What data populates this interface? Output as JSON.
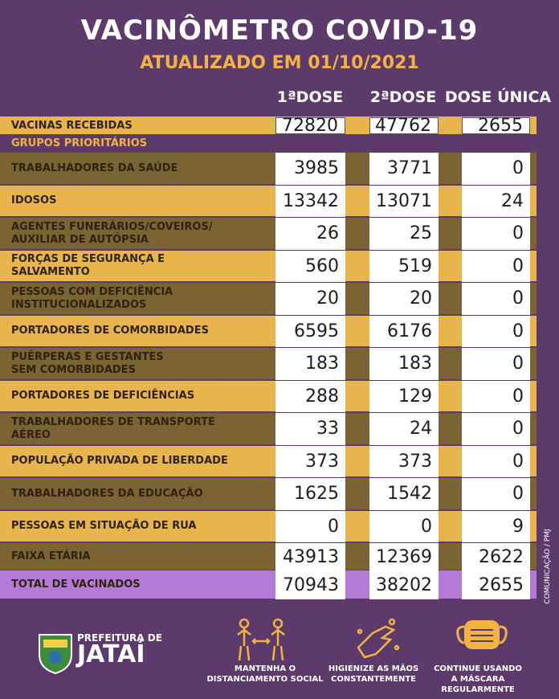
{
  "header": {
    "title": "VACINÔMETRO COVID-19",
    "subtitle": "ATUALIZADO EM 01/10/2021"
  },
  "table": {
    "columns": [
      "1ªDOSE",
      "2ªDOSE",
      "DOSE ÚNICA"
    ],
    "received": {
      "label": [
        "VACINAS RECEBIDAS"
      ],
      "values": [
        72820,
        47762,
        2655
      ]
    },
    "section": "GRUPOS PRIORITÁRIOS",
    "rows": [
      {
        "label": [
          "TRABALHADORES DA SAÚDE"
        ],
        "values": [
          3985,
          3771,
          0
        ]
      },
      {
        "label": [
          "IDOSOS"
        ],
        "values": [
          13342,
          13071,
          24
        ]
      },
      {
        "label": [
          "AGENTES FUNERÁRIOS/COVEIROS/",
          "AUXILIAR DE AUTÓPSIA"
        ],
        "values": [
          26,
          25,
          0
        ]
      },
      {
        "label": [
          "FORÇAS DE SEGURANÇA E",
          "SALVAMENTO"
        ],
        "values": [
          560,
          519,
          0
        ]
      },
      {
        "label": [
          "PESSOAS COM DEFICIÊNCIA",
          "INSTITUCIONALIZADOS"
        ],
        "values": [
          20,
          20,
          0
        ]
      },
      {
        "label": [
          "PORTADORES DE COMORBIDADES"
        ],
        "values": [
          6595,
          6176,
          0
        ]
      },
      {
        "label": [
          "PUÉRPERAS E GESTANTES",
          "SEM COMORBIDADES"
        ],
        "values": [
          183,
          183,
          0
        ]
      },
      {
        "label": [
          "PORTADORES DE DEFICIÊNCIAS"
        ],
        "values": [
          288,
          129,
          0
        ]
      },
      {
        "label": [
          "TRABALHADORES DE TRANSPORTE",
          "AÉREO"
        ],
        "values": [
          33,
          24,
          0
        ]
      },
      {
        "label": [
          "POPULAÇÃO PRIVADA DE LIBERDADE"
        ],
        "values": [
          373,
          373,
          0
        ]
      },
      {
        "label": [
          "TRABALHADORES DA EDUCAÇÃO"
        ],
        "values": [
          1625,
          1542,
          0
        ]
      },
      {
        "label": [
          "PESSOAS EM SITUAÇÃO DE RUA"
        ],
        "values": [
          0,
          0,
          9
        ]
      }
    ],
    "age": {
      "label": [
        "FAIXA ETÁRIA"
      ],
      "values": [
        43913,
        12369,
        2622
      ]
    },
    "total": {
      "label": [
        "TOTAL DE VACINADOS"
      ],
      "values": [
        70943,
        38202,
        2655
      ]
    }
  },
  "footer": {
    "logo": [
      "PREFEITURA DE",
      "JATAÍ"
    ],
    "tips": [
      [
        "MANTENHA O",
        "DISTANCIAMENTO SOCIAL"
      ],
      [
        "HIGIENIZE AS MÃOS",
        "CONSTANTEMENTE"
      ],
      [
        "CONTINUE USANDO",
        "A MÁSCARA",
        "REGULARMENTE"
      ]
    ],
    "credit": "COMUNICAÇÃO / PMJ"
  }
}
